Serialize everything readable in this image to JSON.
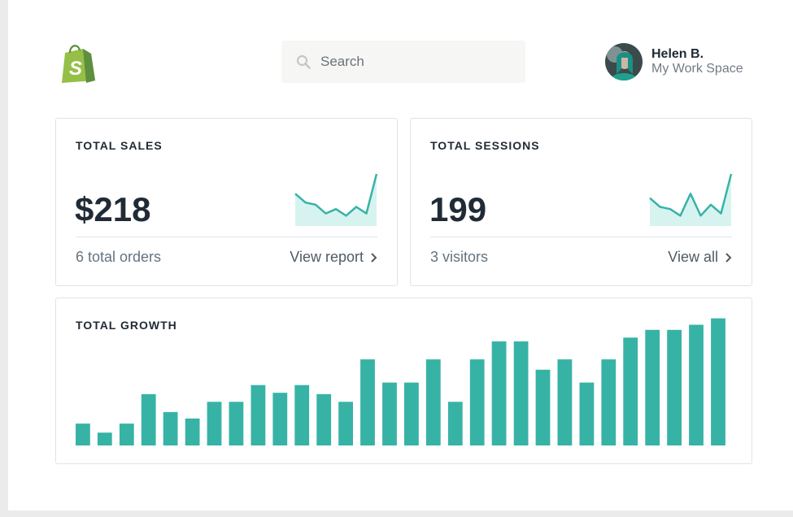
{
  "header": {
    "logo": "shopify-bag-logo",
    "search": {
      "placeholder": "Search",
      "icon": "search-icon"
    },
    "user": {
      "name": "Helen B.",
      "workspace": "My Work Space"
    }
  },
  "cards": {
    "sales": {
      "title": "TOTAL SALES",
      "value": "$218",
      "subtitle": "6 total orders",
      "link": "View report",
      "trend": [
        0.55,
        0.35,
        0.3,
        0.1,
        0.2,
        0.05,
        0.25,
        0.1,
        1.0
      ]
    },
    "sessions": {
      "title": "TOTAL SESSIONS",
      "value": "199",
      "subtitle": "3 visitors",
      "link": "View all",
      "trend": [
        0.45,
        0.25,
        0.2,
        0.05,
        0.55,
        0.05,
        0.3,
        0.1,
        1.0
      ]
    },
    "growth": {
      "title": "TOTAL GROWTH"
    }
  },
  "colors": {
    "accent": "#37b3a6",
    "spark_fill": "#d6f3f0",
    "logo_green": "#95bf47",
    "logo_dark": "#5e8e3e"
  },
  "chart_data": {
    "type": "bar",
    "values": [
      17,
      10,
      17,
      40,
      26,
      21,
      34,
      34,
      47,
      41,
      47,
      40,
      34,
      67,
      49,
      49,
      67,
      34,
      67,
      81,
      81,
      59,
      67,
      49,
      67,
      84,
      90,
      90,
      94,
      99
    ],
    "ylim": [
      0,
      100
    ]
  }
}
